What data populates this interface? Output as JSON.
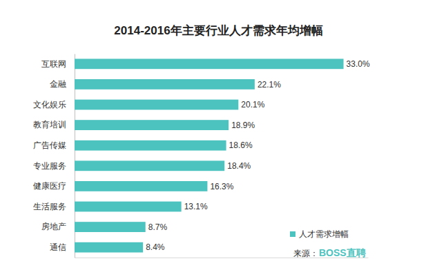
{
  "chart_data": {
    "type": "bar",
    "orientation": "horizontal",
    "title": "2014-2016年主要行业人才需求年均增幅",
    "categories": [
      "互联网",
      "金融",
      "文化娱乐",
      "教育培训",
      "广告传媒",
      "专业服务",
      "健康医疗",
      "生活服务",
      "房地产",
      "通信"
    ],
    "series": [
      {
        "name": "人才需求增幅",
        "color": "#4dc3c0",
        "values": [
          33.0,
          22.1,
          20.1,
          18.9,
          18.6,
          18.4,
          16.3,
          13.1,
          8.7,
          8.4
        ],
        "value_labels": [
          "33.0%",
          "22.1%",
          "20.1%",
          "18.9%",
          "18.6%",
          "18.4%",
          "16.3%",
          "13.1%",
          "8.7%",
          "8.4%"
        ]
      }
    ],
    "xlim": [
      0,
      36
    ],
    "data_labels": true,
    "tick_labels": "y",
    "grid": false,
    "legend": "bottom-right",
    "annotations": [
      "来源：",
      "BOSS直聘"
    ]
  }
}
